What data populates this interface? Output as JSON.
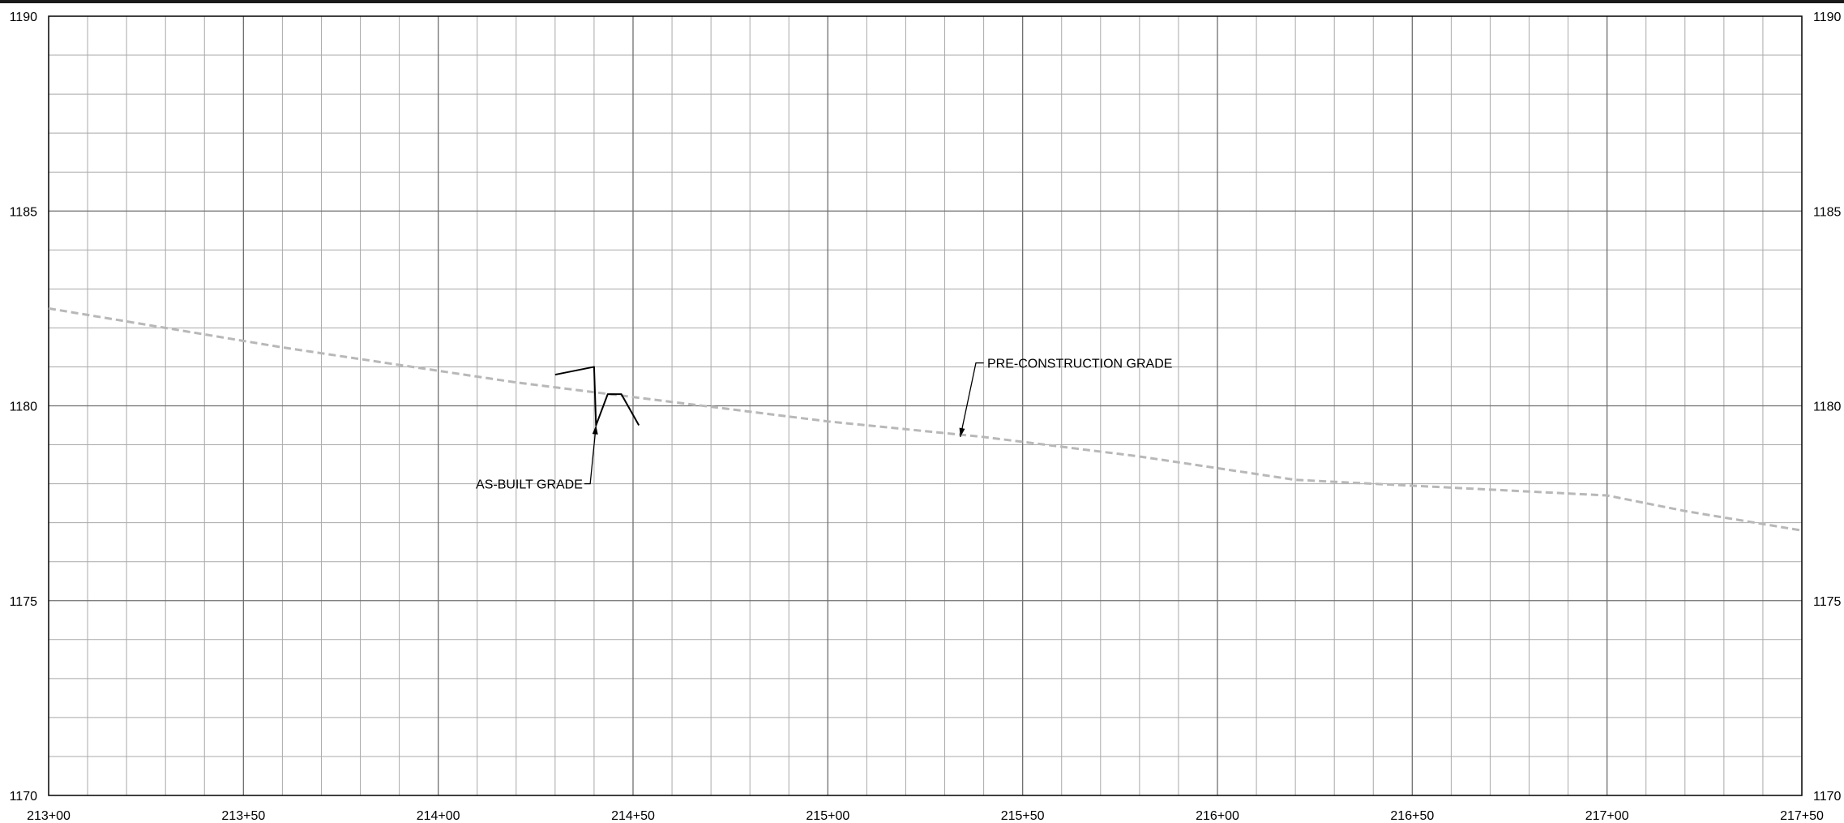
{
  "chart_data": {
    "type": "line",
    "title": "",
    "xlabel": "",
    "ylabel": "",
    "xlim": [
      21300,
      21750
    ],
    "ylim": [
      1170,
      1190
    ],
    "x_major_step": 50,
    "x_minor_step": 10,
    "y_major_step": 5,
    "y_minor_step": 1,
    "grid": true,
    "x_tick_labels": [
      {
        "value": 21300,
        "label": "213+00"
      },
      {
        "value": 21350,
        "label": "213+50"
      },
      {
        "value": 21400,
        "label": "214+00"
      },
      {
        "value": 21450,
        "label": "214+50"
      },
      {
        "value": 21500,
        "label": "215+00"
      },
      {
        "value": 21550,
        "label": "215+50"
      },
      {
        "value": 21600,
        "label": "216+00"
      },
      {
        "value": 21650,
        "label": "216+50"
      },
      {
        "value": 21700,
        "label": "217+00"
      },
      {
        "value": 21750,
        "label": "217+50"
      }
    ],
    "y_tick_labels": [
      {
        "value": 1190,
        "label": "1190"
      },
      {
        "value": 1185,
        "label": "1185"
      },
      {
        "value": 1180,
        "label": "1180"
      },
      {
        "value": 1175,
        "label": "1175"
      },
      {
        "value": 1170,
        "label": "1170"
      }
    ],
    "series": [
      {
        "key": "pre_construction",
        "style": "dashed",
        "color": "#b8b8b8",
        "points": [
          [
            21300,
            1182.5
          ],
          [
            21360,
            1181.5
          ],
          [
            21420,
            1180.6
          ],
          [
            21460,
            1180.1
          ],
          [
            21500,
            1179.6
          ],
          [
            21540,
            1179.2
          ],
          [
            21580,
            1178.7
          ],
          [
            21620,
            1178.1
          ],
          [
            21640,
            1178.0
          ],
          [
            21700,
            1177.7
          ],
          [
            21720,
            1177.3
          ],
          [
            21750,
            1176.8
          ]
        ]
      },
      {
        "key": "as_built",
        "style": "solid",
        "color": "#000000",
        "points": [
          [
            21430,
            1180.8
          ],
          [
            21440,
            1181.0
          ],
          [
            21440.5,
            1179.5
          ],
          [
            21443.5,
            1180.3
          ],
          [
            21447,
            1180.3
          ],
          [
            21451.5,
            1179.5
          ]
        ]
      }
    ],
    "annotations": [
      {
        "text": "AS-BUILT GRADE",
        "text_at": [
          21409.5,
          1178.0
        ],
        "leader": [
          [
            21437.5,
            1178.0
          ],
          [
            21439,
            1178.0
          ],
          [
            21440.5,
            1179.5
          ]
        ]
      },
      {
        "text": "PRE-CONSTRUCTION GRADE",
        "text_at": [
          21540.5,
          1181.1
        ],
        "leader": [
          [
            21540,
            1181.1
          ],
          [
            21538,
            1181.1
          ],
          [
            21534,
            1179.2
          ]
        ]
      }
    ]
  },
  "colors": {
    "background": "#ffffff",
    "grid_major": "#6f6f6f",
    "grid_minor": "#a9a9a9",
    "frame": "#000000",
    "top_rule": "#1a1a1a"
  }
}
